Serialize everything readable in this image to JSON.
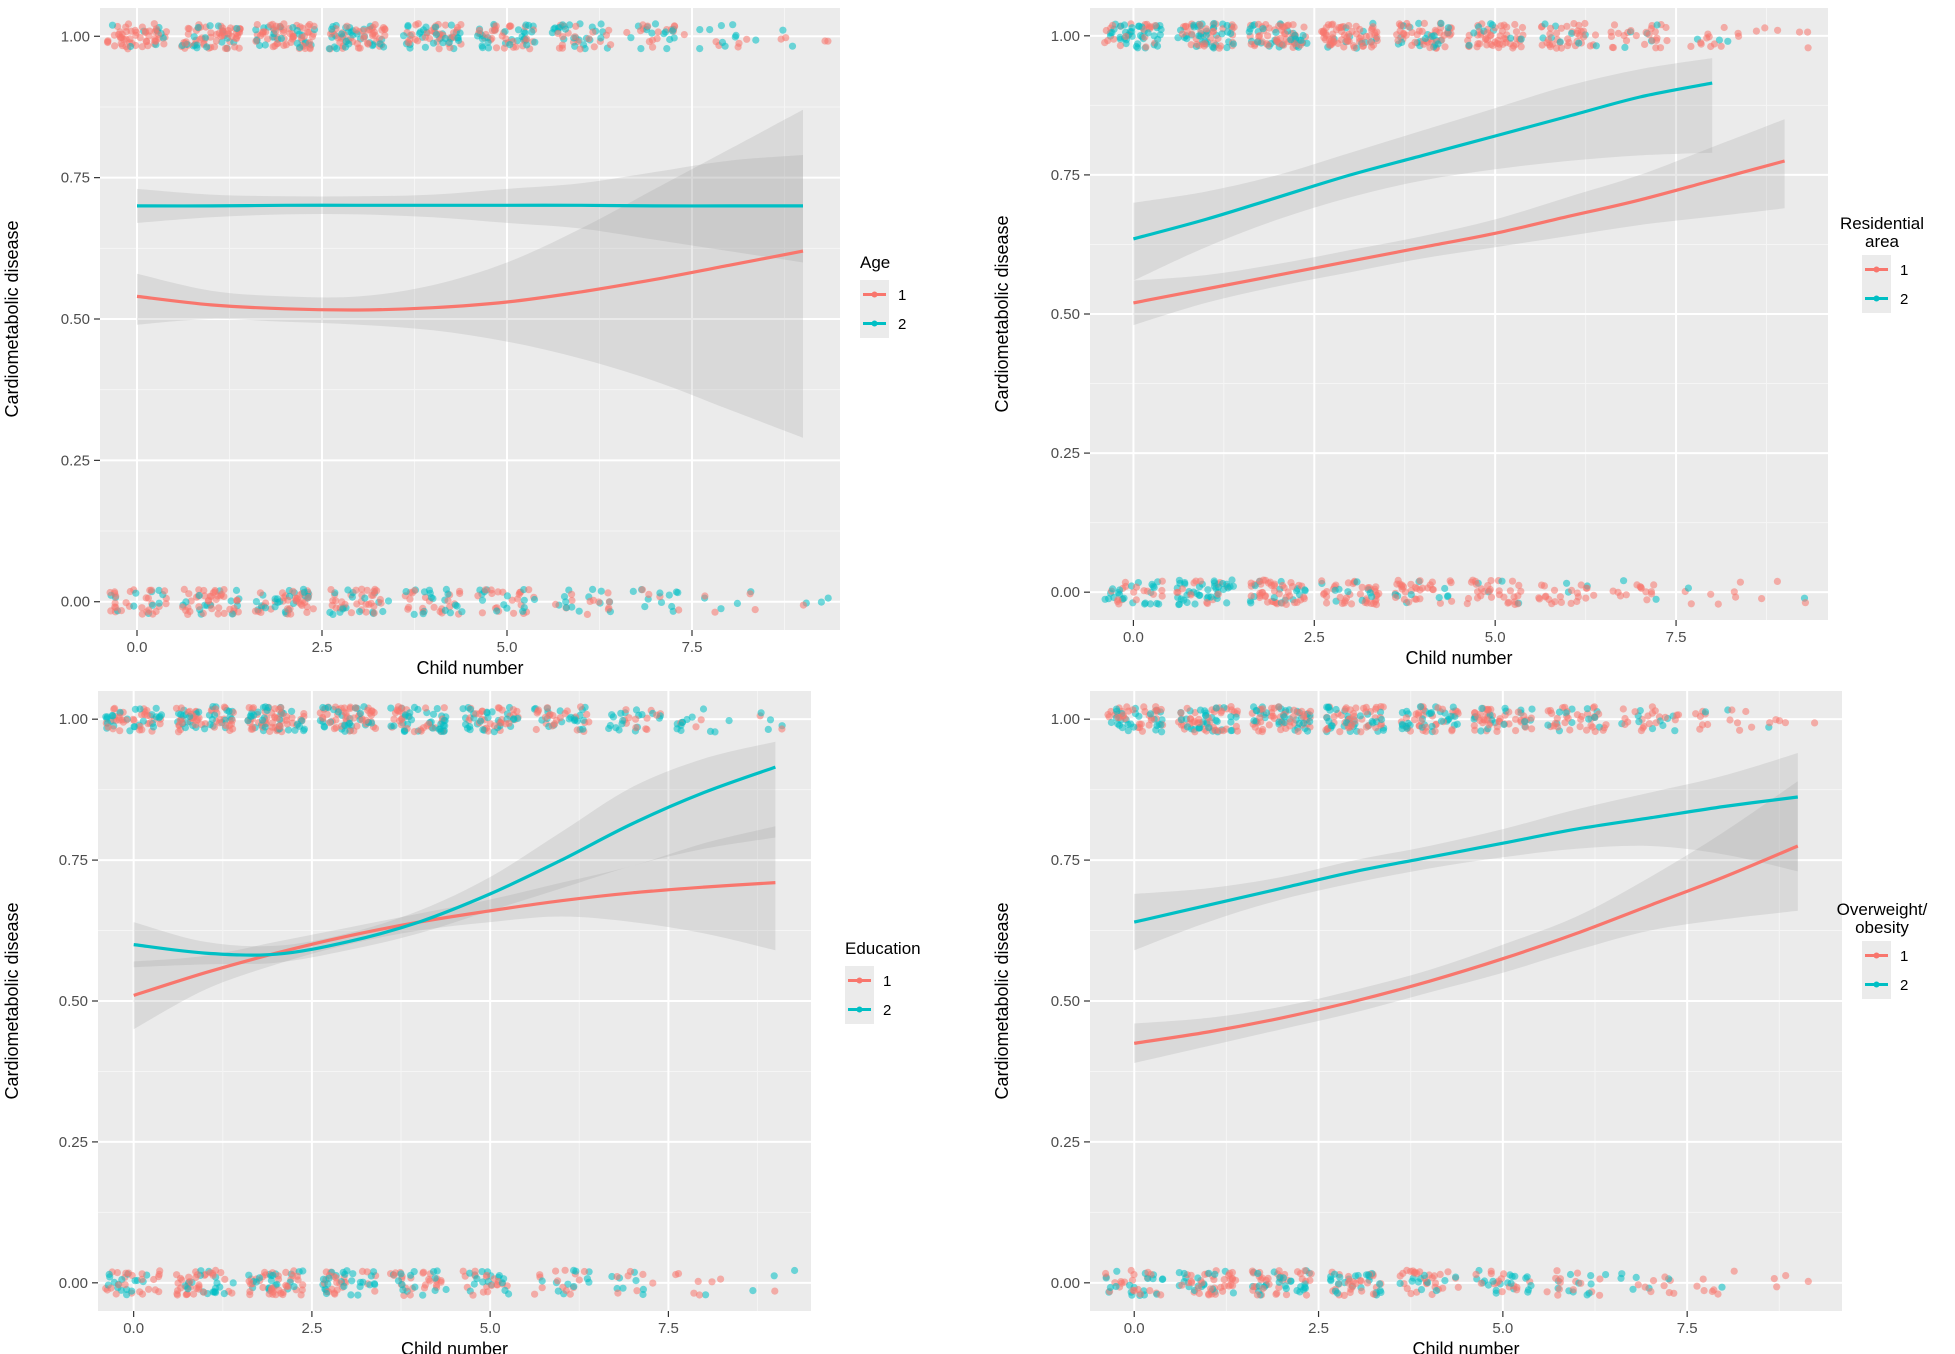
{
  "colors": {
    "group1": "#F8766D",
    "group2": "#00BFC4"
  },
  "chart_data": [
    {
      "type": "scatter",
      "xlabel": "Child number",
      "ylabel": "Cardiometabolic disease",
      "xlim": [
        -0.5,
        9.5
      ],
      "ylim": [
        -0.05,
        1.05
      ],
      "xticks": [
        "0.0",
        "2.5",
        "5.0",
        "7.5"
      ],
      "yticks": [
        "0.00",
        "0.25",
        "0.50",
        "0.75",
        "1.00"
      ],
      "legend": {
        "title": "Age",
        "labels": [
          "1",
          "2"
        ],
        "placement": "right"
      },
      "series": [
        {
          "name": "1",
          "x": [
            0,
            1,
            2,
            3,
            4,
            5,
            6,
            7,
            8,
            9
          ],
          "y": [
            0.54,
            0.525,
            0.518,
            0.516,
            0.52,
            0.53,
            0.548,
            0.57,
            0.595,
            0.62
          ],
          "ci_low": [
            0.49,
            0.5,
            0.495,
            0.49,
            0.48,
            0.46,
            0.43,
            0.39,
            0.34,
            0.29
          ],
          "ci_high": [
            0.58,
            0.55,
            0.54,
            0.54,
            0.56,
            0.6,
            0.66,
            0.73,
            0.8,
            0.87
          ]
        },
        {
          "name": "2",
          "x": [
            0,
            1,
            2,
            3,
            4,
            5,
            6,
            7,
            8,
            9
          ],
          "y": [
            0.7,
            0.7,
            0.701,
            0.701,
            0.701,
            0.701,
            0.701,
            0.7,
            0.7,
            0.7
          ],
          "ci_low": [
            0.67,
            0.68,
            0.685,
            0.685,
            0.68,
            0.67,
            0.66,
            0.64,
            0.62,
            0.6
          ],
          "ci_high": [
            0.73,
            0.72,
            0.717,
            0.717,
            0.72,
            0.73,
            0.74,
            0.76,
            0.78,
            0.79
          ]
        }
      ],
      "points": {
        "mix": [
          0.2,
          0.25,
          0.35,
          0.4,
          0.45,
          0.5,
          0.55,
          0.55,
          0.6,
          0.6
        ],
        "top_counts": [
          60,
          75,
          80,
          75,
          65,
          60,
          45,
          30,
          15,
          6
        ],
        "bottom_counts": [
          40,
          55,
          60,
          50,
          40,
          35,
          25,
          15,
          8,
          4
        ]
      }
    },
    {
      "type": "scatter",
      "xlabel": "Child number",
      "ylabel": "Cardiometabolic disease",
      "xlim": [
        -0.6,
        9.6
      ],
      "ylim": [
        -0.05,
        1.05
      ],
      "xticks": [
        "0.0",
        "2.5",
        "5.0",
        "7.5"
      ],
      "yticks": [
        "0.00",
        "0.25",
        "0.50",
        "0.75",
        "1.00"
      ],
      "legend": {
        "title": "Residential area",
        "labels": [
          "1",
          "2"
        ],
        "placement": "right"
      },
      "series": [
        {
          "name": "1",
          "x": [
            0,
            1,
            2,
            3,
            4,
            5,
            6,
            7,
            8,
            9
          ],
          "y": [
            0.52,
            0.545,
            0.57,
            0.595,
            0.62,
            0.645,
            0.675,
            0.705,
            0.74,
            0.775
          ],
          "ci_low": [
            0.48,
            0.52,
            0.55,
            0.575,
            0.6,
            0.62,
            0.64,
            0.66,
            0.675,
            0.69
          ],
          "ci_high": [
            0.56,
            0.57,
            0.59,
            0.615,
            0.64,
            0.67,
            0.71,
            0.75,
            0.8,
            0.85
          ]
        },
        {
          "name": "2",
          "x": [
            0,
            1,
            2,
            3,
            4,
            5,
            6,
            7,
            8
          ],
          "y": [
            0.635,
            0.67,
            0.71,
            0.75,
            0.785,
            0.82,
            0.855,
            0.89,
            0.915
          ],
          "ci_low": [
            0.56,
            0.62,
            0.67,
            0.71,
            0.74,
            0.76,
            0.775,
            0.785,
            0.79
          ],
          "ci_high": [
            0.7,
            0.72,
            0.75,
            0.79,
            0.83,
            0.87,
            0.91,
            0.94,
            0.96
          ]
        }
      ],
      "points": {
        "mix": [
          0.6,
          0.55,
          0.3,
          0.25,
          0.25,
          0.2,
          0.15,
          0.15,
          0.1,
          0.05
        ],
        "top_counts": [
          60,
          75,
          80,
          75,
          65,
          60,
          45,
          30,
          15,
          6
        ],
        "bottom_counts": [
          40,
          55,
          60,
          50,
          40,
          35,
          25,
          15,
          8,
          4
        ]
      }
    },
    {
      "type": "scatter",
      "xlabel": "Child number",
      "ylabel": "Cardiometabolic disease",
      "xlim": [
        -0.5,
        9.5
      ],
      "ylim": [
        -0.05,
        1.05
      ],
      "xticks": [
        "0.0",
        "2.5",
        "5.0",
        "7.5"
      ],
      "yticks": [
        "0.00",
        "0.25",
        "0.50",
        "0.75",
        "1.00"
      ],
      "legend": {
        "title": "Education",
        "labels": [
          "1",
          "2"
        ],
        "placement": "right"
      },
      "series": [
        {
          "name": "1",
          "x": [
            0,
            1,
            2,
            3,
            4,
            5,
            6,
            7,
            8,
            9
          ],
          "y": [
            0.51,
            0.55,
            0.585,
            0.615,
            0.64,
            0.66,
            0.678,
            0.692,
            0.702,
            0.71
          ],
          "ci_low": [
            0.45,
            0.52,
            0.565,
            0.6,
            0.625,
            0.64,
            0.65,
            0.64,
            0.62,
            0.59
          ],
          "ci_high": [
            0.57,
            0.58,
            0.605,
            0.63,
            0.655,
            0.68,
            0.71,
            0.74,
            0.78,
            0.81
          ]
        },
        {
          "name": "2",
          "x": [
            0,
            1,
            2,
            3,
            4,
            5,
            6,
            7,
            8,
            9
          ],
          "y": [
            0.6,
            0.585,
            0.583,
            0.605,
            0.64,
            0.69,
            0.75,
            0.815,
            0.87,
            0.915
          ],
          "ci_low": [
            0.56,
            0.565,
            0.568,
            0.59,
            0.62,
            0.66,
            0.7,
            0.74,
            0.77,
            0.79
          ],
          "ci_high": [
            0.64,
            0.605,
            0.598,
            0.62,
            0.66,
            0.72,
            0.8,
            0.88,
            0.93,
            0.96
          ]
        }
      ],
      "points": {
        "mix": [
          0.4,
          0.35,
          0.35,
          0.4,
          0.45,
          0.5,
          0.55,
          0.6,
          0.7,
          0.8
        ],
        "top_counts": [
          60,
          75,
          80,
          75,
          65,
          60,
          45,
          30,
          15,
          6
        ],
        "bottom_counts": [
          40,
          55,
          60,
          50,
          40,
          35,
          25,
          15,
          8,
          4
        ]
      }
    },
    {
      "type": "scatter",
      "xlabel": "Child number",
      "ylabel": "Cardiometabolic disease",
      "xlim": [
        -0.6,
        9.6
      ],
      "ylim": [
        -0.05,
        1.05
      ],
      "xticks": [
        "0.0",
        "2.5",
        "5.0",
        "7.5"
      ],
      "yticks": [
        "0.00",
        "0.25",
        "0.50",
        "0.75",
        "1.00"
      ],
      "legend": {
        "title": "Overweight/ obesity",
        "labels": [
          "1",
          "2"
        ],
        "placement": "right"
      },
      "series": [
        {
          "name": "1",
          "x": [
            0,
            1,
            2,
            3,
            4,
            5,
            6,
            7,
            8,
            9
          ],
          "y": [
            0.425,
            0.445,
            0.47,
            0.5,
            0.535,
            0.575,
            0.62,
            0.67,
            0.72,
            0.775
          ],
          "ci_low": [
            0.39,
            0.42,
            0.45,
            0.48,
            0.515,
            0.55,
            0.59,
            0.625,
            0.645,
            0.66
          ],
          "ci_high": [
            0.46,
            0.47,
            0.49,
            0.52,
            0.555,
            0.6,
            0.65,
            0.72,
            0.8,
            0.89
          ]
        },
        {
          "name": "2",
          "x": [
            0,
            1,
            2,
            3,
            4,
            5,
            6,
            7,
            8,
            9
          ],
          "y": [
            0.64,
            0.67,
            0.7,
            0.73,
            0.755,
            0.78,
            0.805,
            0.825,
            0.845,
            0.862
          ],
          "ci_low": [
            0.59,
            0.64,
            0.68,
            0.71,
            0.735,
            0.755,
            0.77,
            0.775,
            0.76,
            0.73
          ],
          "ci_high": [
            0.69,
            0.7,
            0.72,
            0.75,
            0.775,
            0.805,
            0.84,
            0.87,
            0.9,
            0.94
          ]
        }
      ],
      "points": {
        "mix": [
          0.45,
          0.45,
          0.45,
          0.45,
          0.4,
          0.4,
          0.35,
          0.3,
          0.25,
          0.2
        ],
        "top_counts": [
          60,
          75,
          80,
          75,
          65,
          60,
          45,
          30,
          15,
          6
        ],
        "bottom_counts": [
          40,
          55,
          60,
          50,
          40,
          35,
          25,
          15,
          8,
          4
        ]
      }
    }
  ]
}
